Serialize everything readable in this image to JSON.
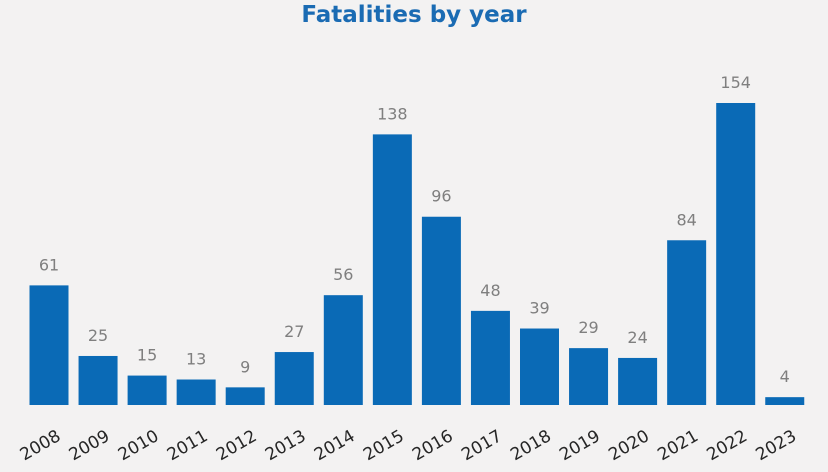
{
  "chart_data": {
    "type": "bar",
    "title": "Fatalities by year",
    "xlabel": "",
    "ylabel": "",
    "categories": [
      "2008",
      "2009",
      "2010",
      "2011",
      "2012",
      "2013",
      "2014",
      "2015",
      "2016",
      "2017",
      "2018",
      "2019",
      "2020",
      "2021",
      "2022",
      "2023"
    ],
    "values": [
      61,
      25,
      15,
      13,
      9,
      27,
      56,
      138,
      96,
      48,
      39,
      29,
      24,
      84,
      154,
      4
    ],
    "data_labels": [
      "61",
      "25",
      "15",
      "13",
      "9",
      "27",
      "56",
      "138",
      "96",
      "48",
      "39",
      "29",
      "24",
      "84",
      "154",
      "4"
    ],
    "ylim": [
      0,
      154
    ],
    "grid": false,
    "legend": "none",
    "colors": {
      "bar": "#0a6ab6",
      "title": "#1a6bb3",
      "data_label": "#7f7f7f",
      "tick_label": "#262626",
      "background": "#f3f2f2"
    }
  }
}
